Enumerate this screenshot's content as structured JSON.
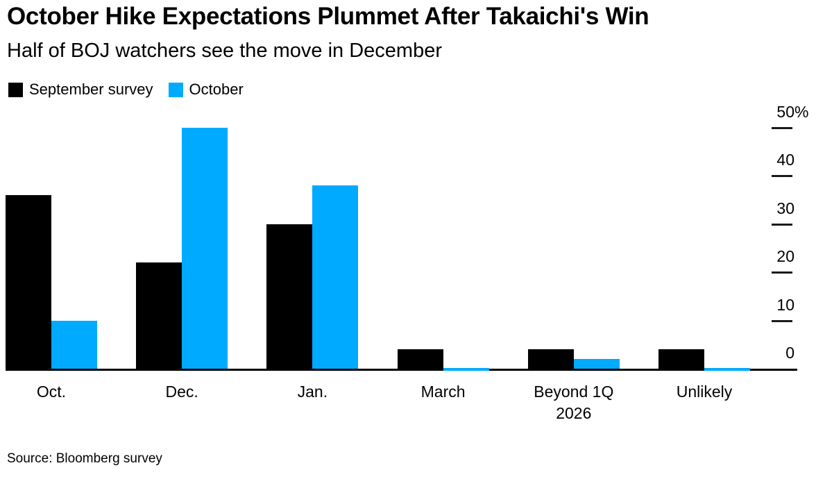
{
  "header": {
    "title": "October Hike Expectations Plummet After Takaichi's Win",
    "subtitle": "Half of BOJ watchers see the move in December"
  },
  "legend": {
    "items": [
      {
        "label": "September survey",
        "color": "#000000"
      },
      {
        "label": "October",
        "color": "#00AAFF"
      }
    ]
  },
  "chart_data": {
    "type": "bar",
    "title": "October Hike Expectations Plummet After Takaichi's Win",
    "subtitle": "Half of BOJ watchers see the move in December",
    "unit": "%",
    "categories": [
      "Oct.",
      "Dec.",
      "Jan.",
      "March",
      "Beyond 1Q\n2026",
      "Unlikely"
    ],
    "series": [
      {
        "name": "September survey",
        "color": "#000000",
        "values": [
          36,
          22,
          30,
          4,
          4,
          4
        ]
      },
      {
        "name": "October",
        "color": "#00AAFF",
        "values": [
          10,
          50,
          38,
          0,
          2,
          0
        ]
      }
    ],
    "ylim": [
      0,
      50
    ],
    "yticks": [
      {
        "value": 50,
        "label": "50",
        "suffix": "%"
      },
      {
        "value": 40,
        "label": "40"
      },
      {
        "value": 30,
        "label": "30"
      },
      {
        "value": 20,
        "label": "20"
      },
      {
        "value": 10,
        "label": "10"
      },
      {
        "value": 0,
        "label": "0"
      }
    ],
    "grid": false,
    "axis_side": "right",
    "legend_position": "top-left"
  },
  "footer": {
    "source": "Source: Bloomberg survey"
  }
}
